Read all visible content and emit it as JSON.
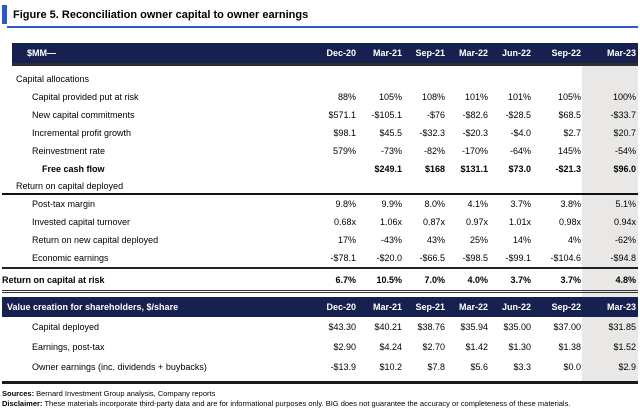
{
  "title": "Figure 5. Reconciliation owner capital to owner earnings",
  "mm_table": {
    "unit_label": "$MM—",
    "periods": [
      "Dec-20",
      "Mar-21",
      "Sep-21",
      "Mar-22",
      "Jun-22",
      "Sep-22",
      "Mar-23"
    ],
    "rows": [
      {
        "label": "Capital allocations",
        "values": [
          "",
          "",
          "",
          "",
          "",
          "",
          ""
        ]
      },
      {
        "label": "Capital provided put at risk",
        "values": [
          "88%",
          "105%",
          "108%",
          "101%",
          "101%",
          "105%",
          "100%"
        ]
      },
      {
        "label": "New capital commitments",
        "values": [
          "$571.1",
          "-$105.1",
          "-$76",
          "-$82.6",
          "-$28.5",
          "$68.5",
          "-$33.7"
        ]
      },
      {
        "label": "Incremental profit growth",
        "values": [
          "$98.1",
          "$45.5",
          "-$32.3",
          "-$20.3",
          "-$4.0",
          "$2.7",
          "$20.7"
        ]
      },
      {
        "label": "Reinvestment rate",
        "values": [
          "579%",
          "-73%",
          "-82%",
          "-170%",
          "-64%",
          "145%",
          "-54%"
        ]
      },
      {
        "label": "Free cash flow",
        "values": [
          "",
          "$249.1",
          "$168",
          "$131.1",
          "$73.0",
          "-$21.3",
          "$96.0"
        ]
      },
      {
        "label": "Return on capital deployed",
        "values": [
          "",
          "",
          "",
          "",
          "",
          "",
          ""
        ]
      },
      {
        "label": "Post-tax margin",
        "values": [
          "9.8%",
          "9.9%",
          "8.0%",
          "4.1%",
          "3.7%",
          "3.8%",
          "5.1%"
        ]
      },
      {
        "label": "Invested capital turnover",
        "values": [
          "0.68x",
          "1.06x",
          "0.87x",
          "0.97x",
          "1.01x",
          "0.98x",
          "0.94x"
        ]
      },
      {
        "label": "Return on new capital deployed",
        "values": [
          "17%",
          "-43%",
          "43%",
          "25%",
          "14%",
          "4%",
          "-62%"
        ]
      },
      {
        "label": "Economic earnings",
        "values": [
          "-$78.1",
          "-$20.0",
          "-$66.5",
          "-$98.5",
          "-$99.1",
          "-$104.6",
          "-$94.8"
        ]
      },
      {
        "label": "Return on capital at risk",
        "values": [
          "6.7%",
          "10.5%",
          "7.0%",
          "4.0%",
          "3.7%",
          "3.7%",
          "4.8%"
        ]
      }
    ]
  },
  "share_table": {
    "header_label": "Value creation for shareholders, $/share",
    "periods": [
      "Dec-20",
      "Mar-21",
      "Sep-21",
      "Mar-22",
      "Jun-22",
      "Sep-22",
      "Mar-23"
    ],
    "rows": [
      {
        "label": "Capital deployed",
        "values": [
          "$43.30",
          "$40.21",
          "$38.76",
          "$35.94",
          "$35.00",
          "$37.00",
          "$31.85"
        ]
      },
      {
        "label": "Earnings, post-tax",
        "values": [
          "$2.90",
          "$4.24",
          "$2.70",
          "$1.42",
          "$1.30",
          "$1.38",
          "$1.52"
        ]
      },
      {
        "label": "Owner earnings (inc. dividends + buybacks)",
        "values": [
          "-$13.9",
          "$10.2",
          "$7.8",
          "$5.6",
          "$3.3",
          "$0.0",
          "$2.9"
        ]
      }
    ]
  },
  "footer": {
    "sources_label": "Sources:",
    "sources_text": "Bernard Investment Group analysis, Company reports",
    "disclaimer_label": "Disclaimer:",
    "disclaimer_text": "These materials incorporate third-party data and are for informational purposes only. BIG does not guarantee the accuracy or completeness of these materials."
  },
  "colors": {
    "header_navy": "#17214f",
    "accent_blue": "#2b57c8",
    "highlight_gray": "#e9e8e6"
  }
}
